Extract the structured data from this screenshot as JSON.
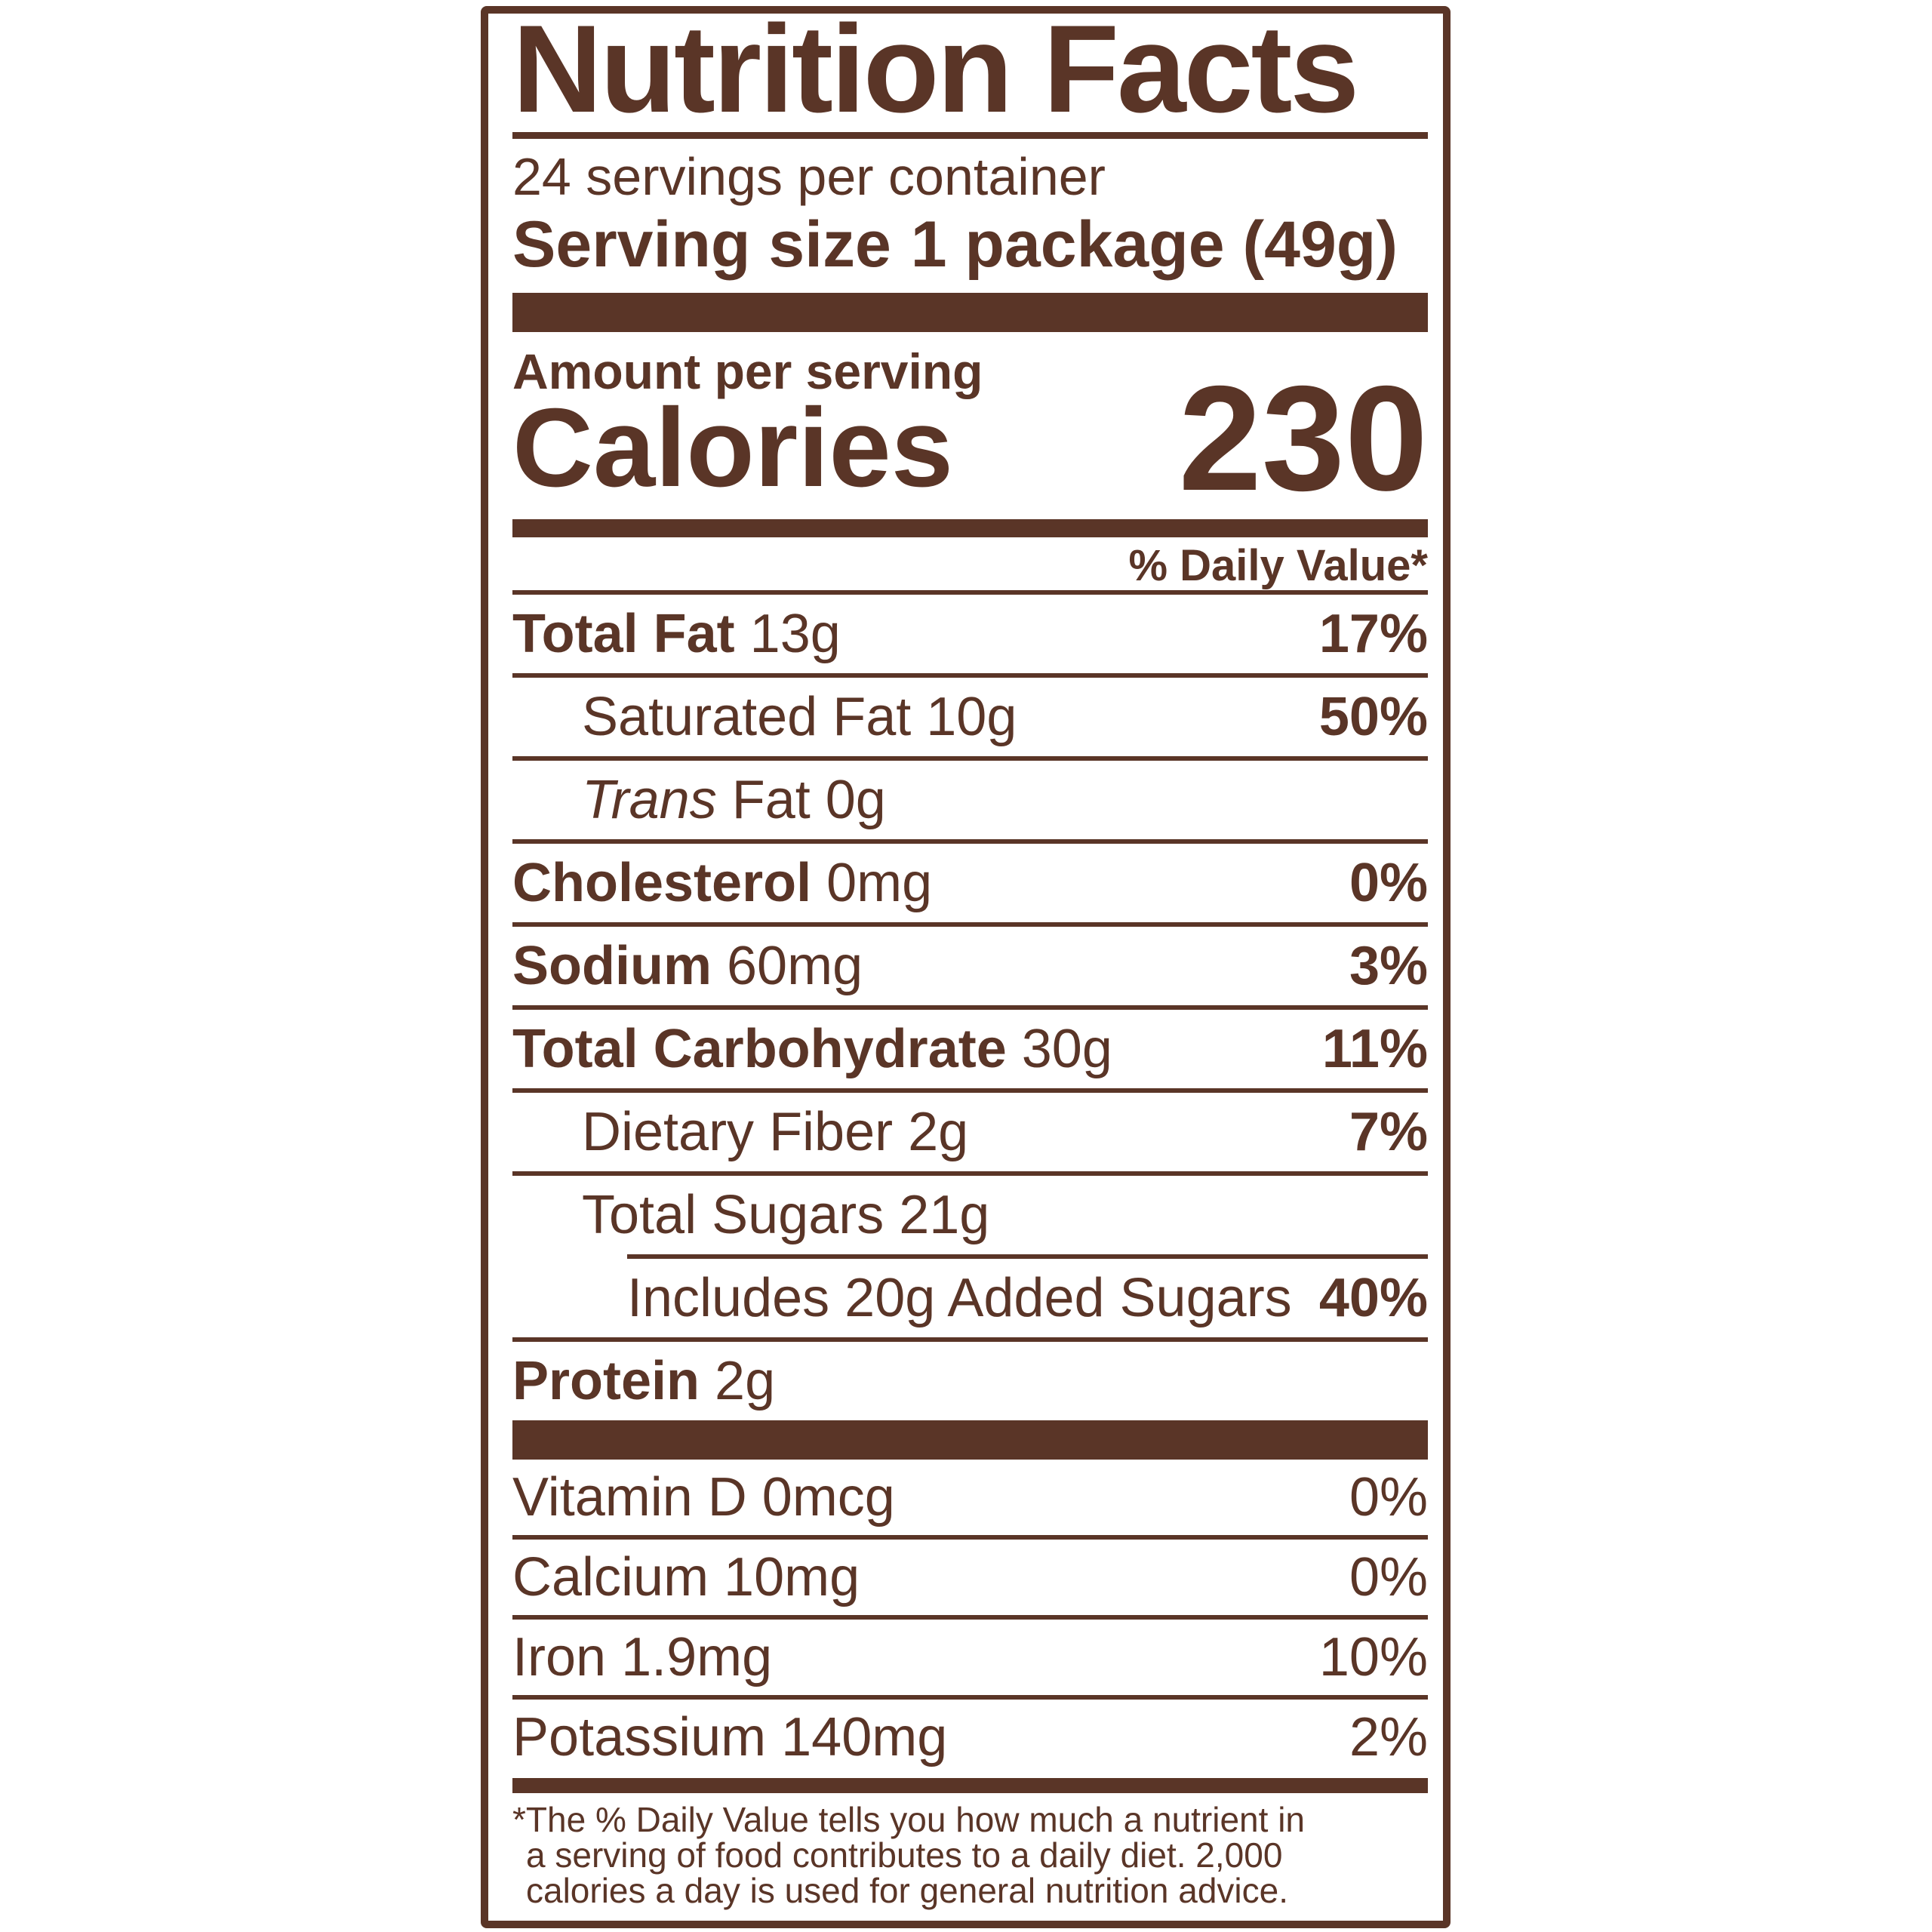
{
  "colors": {
    "brand": "#5A3527",
    "background": "#FFFFFF"
  },
  "label": {
    "title": "Nutrition Facts",
    "servings_per_container": "24 servings per container",
    "serving_size_label": "Serving size",
    "serving_size_value": "1 package (49g)",
    "amount_per_serving": "Amount per serving",
    "calories_label": "Calories",
    "calories_value": "230",
    "daily_value_header": "% Daily Value*",
    "rows": [
      {
        "bold": "Total Fat",
        "reg": " 13g",
        "dv": "17%"
      },
      {
        "reg": "Saturated Fat 10g",
        "dv": "50%"
      },
      {
        "italic": "Trans",
        "reg": " Fat 0g",
        "dv": ""
      },
      {
        "bold": "Cholesterol",
        "reg": " 0mg",
        "dv": "0%"
      },
      {
        "bold": "Sodium",
        "reg": " 60mg",
        "dv": "3%"
      },
      {
        "bold": "Total Carbohydrate",
        "reg": " 30g",
        "dv": "11%"
      },
      {
        "reg": "Dietary Fiber 2g",
        "dv": "7%"
      },
      {
        "reg": "Total Sugars 21g",
        "dv": ""
      },
      {
        "reg": "Includes 20g Added Sugars",
        "dv": "40%"
      },
      {
        "bold": "Protein",
        "reg": " 2g",
        "dv": ""
      }
    ],
    "vitamins": [
      {
        "reg": "Vitamin D 0mcg",
        "dv": "0%"
      },
      {
        "reg": "Calcium 10mg",
        "dv": "0%"
      },
      {
        "reg": "Iron 1.9mg",
        "dv": "10%"
      },
      {
        "reg": "Potassium 140mg",
        "dv": "2%"
      }
    ],
    "footnote_lines": [
      "*The % Daily Value tells you how much a nutrient in",
      "a serving of food contributes to a daily diet. 2,000",
      "calories a day is used for general nutrition advice."
    ]
  }
}
